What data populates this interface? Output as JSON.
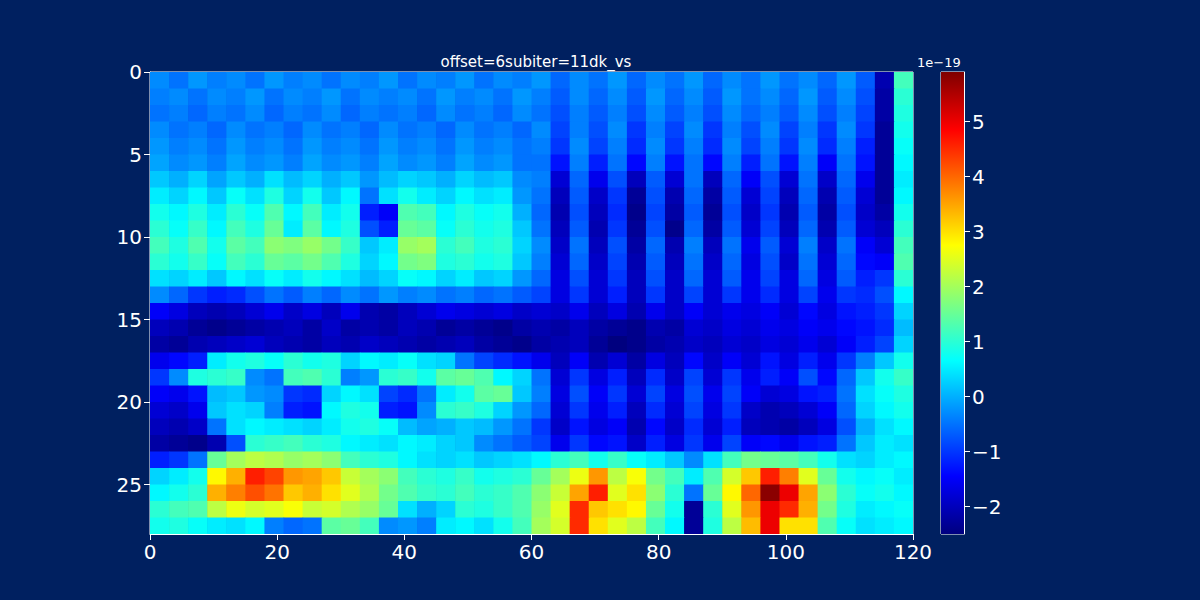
{
  "chart_data": {
    "type": "heatmap",
    "title": "offset=6subiter=11dk_vs",
    "xlim": [
      0,
      120
    ],
    "ylim": [
      28,
      0
    ],
    "xticks": [
      0,
      20,
      40,
      60,
      80,
      100,
      120
    ],
    "yticks": [
      0,
      5,
      10,
      15,
      20,
      25
    ],
    "x_edges": [
      0,
      3,
      6,
      9,
      12,
      15,
      18,
      21,
      24,
      27,
      30,
      33,
      36,
      39,
      42,
      45,
      48,
      51,
      54,
      57,
      60,
      63,
      66,
      69,
      72,
      75,
      78,
      81,
      84,
      87,
      90,
      93,
      96,
      99,
      102,
      105,
      108,
      111,
      114,
      117,
      120
    ],
    "y_edges": [
      0,
      1,
      2,
      3,
      4,
      5,
      6,
      7,
      8,
      9,
      10,
      11,
      12,
      13,
      14,
      15,
      16,
      17,
      18,
      19,
      20,
      21,
      22,
      23,
      24,
      25,
      26,
      27,
      28
    ],
    "color_range": [
      -2.5,
      5.9
    ],
    "color_ticks": [
      {
        "value": -2,
        "label": "−2"
      },
      {
        "value": -1,
        "label": "−1"
      },
      0,
      1,
      2,
      3,
      4,
      5
    ],
    "color_offset_text": "1e−19",
    "z": [
      [
        -0.3,
        -0.5,
        -0.2,
        -0.4,
        -0.3,
        -0.5,
        -0.2,
        -0.4,
        -0.3,
        -0.5,
        -0.3,
        -0.4,
        -0.2,
        -0.5,
        -0.3,
        -0.4,
        -0.2,
        -0.5,
        -0.3,
        -0.4,
        -0.2,
        -0.6,
        -0.3,
        -0.5,
        -0.2,
        -0.6,
        -0.3,
        -0.5,
        -0.2,
        -0.6,
        -0.3,
        -0.5,
        -0.2,
        -0.5,
        -0.3,
        -0.6,
        -0.2,
        -0.7,
        -2.1,
        1.2
      ],
      [
        -0.4,
        -0.3,
        -0.5,
        -0.3,
        -0.4,
        -0.2,
        -0.5,
        -0.3,
        -0.4,
        -0.2,
        -0.5,
        -0.3,
        -0.4,
        -0.3,
        -0.5,
        -0.2,
        -0.4,
        -0.3,
        -0.5,
        -0.2,
        -0.4,
        -0.7,
        -0.3,
        -0.6,
        -0.3,
        -0.7,
        -0.2,
        -0.6,
        -0.3,
        -0.7,
        -0.2,
        -0.5,
        -0.3,
        -0.6,
        -0.2,
        -0.7,
        -0.3,
        -0.8,
        -2.2,
        1.0
      ],
      [
        -0.5,
        -0.4,
        -0.6,
        -0.4,
        -0.5,
        -0.3,
        -0.6,
        -0.4,
        -0.5,
        -0.3,
        -0.6,
        -0.4,
        -0.5,
        -0.4,
        -0.6,
        -0.3,
        -0.5,
        -0.4,
        -0.6,
        -0.3,
        -0.5,
        -0.8,
        -0.4,
        -0.7,
        -0.4,
        -0.8,
        -0.3,
        -0.7,
        -0.4,
        -0.8,
        -0.3,
        -0.6,
        -0.4,
        -0.7,
        -0.3,
        -0.8,
        -0.4,
        -0.9,
        -2.2,
        0.9
      ],
      [
        -0.3,
        -0.5,
        -0.4,
        -0.6,
        -0.3,
        -0.5,
        -0.4,
        -0.6,
        -0.3,
        -0.5,
        -0.4,
        -0.6,
        -0.3,
        -0.5,
        -0.4,
        -0.6,
        -0.3,
        -0.5,
        -0.4,
        -0.6,
        -0.3,
        -0.9,
        -0.4,
        -0.8,
        -0.3,
        -1.0,
        -0.4,
        -0.9,
        -0.3,
        -1.0,
        -0.4,
        -0.8,
        -0.3,
        -0.9,
        -0.4,
        -1.0,
        -0.3,
        -1.0,
        -2.3,
        0.8
      ],
      [
        -0.2,
        -0.4,
        -0.3,
        -0.5,
        -0.2,
        -0.4,
        -0.3,
        -0.5,
        -0.2,
        -0.4,
        -0.3,
        -0.5,
        -0.2,
        -0.4,
        -0.3,
        -0.5,
        -0.2,
        -0.4,
        -0.3,
        -0.5,
        -0.4,
        -1.0,
        -0.3,
        -0.9,
        -0.4,
        -1.1,
        -0.3,
        -1.0,
        -0.4,
        -1.1,
        -0.3,
        -0.9,
        -0.4,
        -1.0,
        -0.3,
        -1.1,
        -0.4,
        -1.2,
        -2.3,
        0.7
      ],
      [
        -0.1,
        -0.3,
        -0.2,
        -0.4,
        -0.1,
        -0.3,
        -0.2,
        -0.4,
        -0.1,
        -0.3,
        -0.2,
        -0.4,
        -0.1,
        -0.3,
        -0.2,
        -0.4,
        -0.1,
        -0.3,
        -0.2,
        -0.5,
        -0.5,
        -1.3,
        -0.4,
        -1.2,
        -0.5,
        -1.4,
        -0.4,
        -1.3,
        -0.5,
        -1.4,
        -0.4,
        -1.2,
        -0.5,
        -1.3,
        -0.4,
        -1.5,
        -0.5,
        -1.3,
        -2.3,
        0.6
      ],
      [
        0.2,
        0.0,
        0.3,
        -0.1,
        0.2,
        0.0,
        0.4,
        0.1,
        0.3,
        0.0,
        0.2,
        -0.2,
        0.1,
        0.3,
        0.2,
        0.0,
        0.3,
        0.1,
        0.2,
        -0.3,
        -0.4,
        -1.8,
        -0.6,
        -1.6,
        -0.8,
        -2.0,
        -0.7,
        -1.8,
        -0.5,
        -2.0,
        -0.6,
        -1.5,
        -0.8,
        -1.8,
        -0.5,
        -1.9,
        -0.6,
        -1.6,
        -2.3,
        0.5
      ],
      [
        0.5,
        0.3,
        0.6,
        0.2,
        0.7,
        0.4,
        0.9,
        0.3,
        0.8,
        0.2,
        0.6,
        -0.5,
        0.4,
        0.8,
        0.5,
        0.3,
        0.6,
        0.4,
        0.5,
        -0.2,
        -0.5,
        -2.0,
        -0.7,
        -1.9,
        -1.0,
        -2.3,
        -0.8,
        -2.1,
        -0.6,
        -2.2,
        -0.7,
        -1.8,
        -0.9,
        -2.0,
        -0.6,
        -2.1,
        -0.7,
        -1.8,
        -2.3,
        0.6
      ],
      [
        0.8,
        0.6,
        0.9,
        0.5,
        1.0,
        0.7,
        1.3,
        0.6,
        1.2,
        0.5,
        0.8,
        -1.2,
        -1.5,
        1.3,
        1.2,
        0.6,
        0.9,
        0.7,
        0.8,
        0.0,
        -0.6,
        -2.1,
        -0.8,
        -2.0,
        -1.1,
        -2.4,
        -0.9,
        -2.2,
        -0.7,
        -2.3,
        -0.8,
        -1.9,
        -1.0,
        -2.1,
        -0.7,
        -2.2,
        -0.8,
        -1.9,
        -2.2,
        0.8
      ],
      [
        1.0,
        0.7,
        1.1,
        0.6,
        1.2,
        0.9,
        1.5,
        0.5,
        1.4,
        0.6,
        0.9,
        -0.8,
        -1.2,
        1.5,
        1.4,
        0.7,
        1.0,
        0.8,
        0.9,
        0.2,
        -0.5,
        -2.0,
        -0.7,
        -2.1,
        -1.0,
        -2.3,
        -0.8,
        -2.4,
        -0.6,
        -2.2,
        -0.7,
        -1.8,
        -0.9,
        -2.0,
        -0.6,
        -2.1,
        -0.7,
        -1.8,
        -2.0,
        1.0
      ],
      [
        1.2,
        0.9,
        1.3,
        0.8,
        1.4,
        1.2,
        1.8,
        1.7,
        1.9,
        1.6,
        1.1,
        0.2,
        0.5,
        1.9,
        2.0,
        1.0,
        1.2,
        0.9,
        1.0,
        0.3,
        -0.3,
        -1.9,
        -0.5,
        -2.0,
        -0.8,
        -2.2,
        -0.6,
        -2.1,
        -0.4,
        -2.0,
        -0.5,
        -1.6,
        -0.7,
        -1.8,
        -0.4,
        -1.9,
        -0.5,
        -1.5,
        -1.8,
        1.2
      ],
      [
        1.0,
        0.8,
        1.1,
        0.7,
        1.2,
        1.0,
        1.5,
        1.4,
        1.6,
        1.3,
        0.9,
        0.3,
        0.6,
        1.6,
        1.7,
        0.9,
        1.0,
        0.8,
        0.9,
        0.2,
        -0.4,
        -1.8,
        -0.6,
        -1.9,
        -0.9,
        -2.1,
        -0.7,
        -2.0,
        -0.5,
        -1.9,
        -0.6,
        -1.7,
        -0.8,
        -1.9,
        -0.5,
        -1.8,
        -0.6,
        -1.4,
        -1.5,
        1.3
      ],
      [
        0.4,
        0.3,
        0.5,
        0.2,
        0.6,
        0.4,
        0.7,
        0.5,
        0.8,
        0.6,
        0.4,
        0.1,
        0.3,
        0.7,
        0.6,
        0.3,
        0.5,
        0.2,
        0.3,
        -0.2,
        -0.6,
        -1.7,
        -0.8,
        -1.8,
        -1.0,
        -2.0,
        -0.8,
        -1.9,
        -0.6,
        -1.8,
        -0.7,
        -1.6,
        -0.9,
        -1.7,
        -0.6,
        -1.7,
        -0.7,
        -1.2,
        -1.0,
        1.0
      ],
      [
        -0.3,
        -0.6,
        -1.0,
        -1.2,
        -1.1,
        -0.8,
        -0.5,
        -0.7,
        -0.4,
        -0.6,
        -0.3,
        -0.5,
        -0.2,
        -0.4,
        -0.3,
        -0.5,
        -0.4,
        -0.6,
        -0.5,
        -0.7,
        -0.9,
        -1.7,
        -1.0,
        -1.8,
        -1.2,
        -2.0,
        -1.0,
        -1.9,
        -0.9,
        -1.8,
        -1.0,
        -1.6,
        -1.1,
        -1.7,
        -0.9,
        -1.6,
        -1.0,
        -1.1,
        -0.8,
        0.6
      ],
      [
        -1.5,
        -1.7,
        -2.0,
        -2.1,
        -2.0,
        -1.8,
        -1.6,
        -1.9,
        -1.7,
        -2.0,
        -1.6,
        -2.1,
        -2.2,
        -2.0,
        -1.8,
        -1.6,
        -1.7,
        -1.8,
        -1.7,
        -1.9,
        -1.8,
        -1.9,
        -1.6,
        -2.0,
        -1.7,
        -2.1,
        -1.6,
        -1.9,
        -1.5,
        -1.8,
        -1.6,
        -1.7,
        -1.5,
        -1.8,
        -1.4,
        -1.7,
        -1.3,
        -1.2,
        -1.0,
        0.3
      ],
      [
        -2.0,
        -2.1,
        -2.3,
        -2.4,
        -2.3,
        -2.2,
        -2.1,
        -2.0,
        -2.2,
        -1.9,
        -2.2,
        -2.1,
        -2.2,
        -2.0,
        -2.1,
        -2.3,
        -2.2,
        -2.3,
        -2.4,
        -2.2,
        -2.1,
        -2.2,
        -2.0,
        -2.2,
        -2.3,
        -2.4,
        -2.1,
        -2.2,
        -1.8,
        -1.9,
        -1.7,
        -1.8,
        -1.6,
        -1.7,
        -1.5,
        -1.6,
        -1.4,
        -1.3,
        -1.1,
        0.1
      ],
      [
        -2.2,
        -2.3,
        -2.1,
        -2.0,
        -1.9,
        -1.8,
        -2.0,
        -2.1,
        -2.2,
        -2.0,
        -2.1,
        -1.9,
        -2.0,
        -2.1,
        -2.2,
        -2.1,
        -2.0,
        -2.2,
        -2.3,
        -2.4,
        -2.2,
        -2.1,
        -2.0,
        -2.3,
        -2.5,
        -2.4,
        -2.2,
        -2.1,
        -1.9,
        -2.0,
        -1.8,
        -1.9,
        -1.7,
        -1.8,
        -1.6,
        -1.8,
        -1.5,
        -1.2,
        -0.9,
        0.3
      ],
      [
        -1.6,
        -1.4,
        -1.2,
        0.5,
        0.8,
        0.9,
        0.7,
        1.0,
        0.8,
        0.9,
        0.3,
        0.6,
        0.5,
        0.7,
        0.4,
        0.3,
        -0.5,
        -0.9,
        -1.1,
        -1.3,
        -1.6,
        -2.0,
        -1.5,
        -2.1,
        -1.8,
        -2.2,
        -1.7,
        -2.0,
        -1.4,
        -1.9,
        -1.5,
        -1.8,
        -1.3,
        -1.7,
        -1.2,
        -1.6,
        -1.0,
        -0.4,
        0.2,
        0.8
      ],
      [
        -1.0,
        -0.3,
        0.9,
        1.0,
        1.1,
        -0.3,
        -0.5,
        1.2,
        1.3,
        1.0,
        -0.4,
        -0.2,
        1.0,
        1.1,
        0.8,
        1.4,
        1.5,
        1.3,
        0.6,
        0.3,
        -0.5,
        -1.8,
        -1.0,
        -1.7,
        -1.2,
        -2.0,
        -1.1,
        -1.9,
        -0.9,
        -1.8,
        -1.0,
        -1.6,
        -1.2,
        -1.5,
        -0.8,
        -1.4,
        -0.6,
        0.2,
        0.8,
        1.1
      ],
      [
        -1.5,
        -1.6,
        -1.3,
        0.1,
        0.2,
        -0.2,
        -0.3,
        -1.0,
        -1.1,
        0.3,
        0.6,
        0.4,
        -0.9,
        -1.1,
        -0.5,
        0.5,
        0.8,
        1.4,
        1.5,
        0.2,
        -0.4,
        -1.7,
        -0.8,
        -1.5,
        -1.0,
        -1.8,
        -0.9,
        -1.7,
        -0.8,
        -1.6,
        -0.9,
        -1.5,
        -1.8,
        -1.7,
        -1.3,
        -1.2,
        -0.5,
        0.4,
        0.7,
        0.9
      ],
      [
        -1.8,
        -1.9,
        -1.6,
        0.2,
        0.4,
        0.3,
        -0.4,
        -1.2,
        -1.3,
        0.6,
        0.9,
        0.8,
        -1.2,
        -1.3,
        -0.3,
        1.0,
        1.1,
        0.9,
        0.3,
        -0.2,
        -0.6,
        -1.8,
        -1.0,
        -1.6,
        -1.2,
        -2.0,
        -1.1,
        -1.8,
        -0.9,
        -1.7,
        -1.0,
        -1.9,
        -2.1,
        -2.0,
        -1.8,
        -1.5,
        -0.6,
        0.3,
        0.6,
        0.8
      ],
      [
        -2.0,
        -2.1,
        -1.9,
        -0.5,
        0.4,
        0.6,
        0.5,
        0.4,
        0.3,
        0.5,
        0.8,
        0.9,
        0.7,
        0.1,
        -0.1,
        0.0,
        0.2,
        0.1,
        -0.2,
        -0.5,
        -1.0,
        -1.9,
        -1.3,
        -1.7,
        -1.5,
        -2.1,
        -1.4,
        -1.9,
        -1.1,
        -1.8,
        -1.2,
        -2.0,
        -2.1,
        -2.2,
        -2.0,
        -1.7,
        -0.8,
        0.0,
        0.4,
        0.6
      ],
      [
        -2.2,
        -2.3,
        -2.4,
        -2.1,
        -0.8,
        1.0,
        1.1,
        1.2,
        1.0,
        0.9,
        0.6,
        0.5,
        0.4,
        0.6,
        0.5,
        0.3,
        0.2,
        -0.3,
        -0.5,
        -0.7,
        -0.9,
        -1.6,
        -1.0,
        -1.4,
        -1.3,
        -1.9,
        -1.2,
        -1.7,
        -1.0,
        -1.6,
        -0.9,
        -1.5,
        -1.4,
        -1.6,
        -1.3,
        -1.2,
        -0.5,
        0.2,
        0.5,
        0.4
      ],
      [
        -1.2,
        -1.0,
        -0.5,
        1.5,
        2.0,
        2.2,
        2.1,
        1.9,
        2.0,
        1.8,
        1.2,
        1.0,
        0.9,
        0.6,
        0.4,
        0.3,
        0.4,
        0.2,
        0.3,
        0.4,
        0.6,
        1.0,
        1.2,
        0.8,
        1.1,
        0.7,
        0.5,
        0.2,
        -0.3,
        0.4,
        1.2,
        1.6,
        1.5,
        1.4,
        1.2,
        0.8,
        0.4,
        0.3,
        0.5,
        0.6
      ],
      [
        0.3,
        0.5,
        0.8,
        2.8,
        3.4,
        4.6,
        4.3,
        3.6,
        3.5,
        3.2,
        2.3,
        2.0,
        1.8,
        1.2,
        1.0,
        0.9,
        1.1,
        0.8,
        0.9,
        1.0,
        1.5,
        2.0,
        2.6,
        3.6,
        2.2,
        2.7,
        1.6,
        1.2,
        0.5,
        1.3,
        2.4,
        3.2,
        4.6,
        3.8,
        2.5,
        1.5,
        0.8,
        0.6,
        0.7,
        0.5
      ],
      [
        0.6,
        0.8,
        1.0,
        3.4,
        3.8,
        4.2,
        3.9,
        3.2,
        3.4,
        3.0,
        2.5,
        2.1,
        1.6,
        1.3,
        1.1,
        1.0,
        1.2,
        1.0,
        1.1,
        1.3,
        1.8,
        2.3,
        3.5,
        4.6,
        2.5,
        3.0,
        1.8,
        1.0,
        -0.5,
        1.5,
        2.8,
        4.0,
        5.8,
        5.0,
        3.5,
        1.8,
        1.0,
        0.7,
        0.8,
        0.6
      ],
      [
        1.0,
        1.2,
        1.3,
        2.2,
        2.6,
        2.4,
        2.5,
        2.7,
        2.3,
        2.4,
        2.1,
        1.9,
        1.5,
        0.4,
        0.0,
        0.3,
        1.0,
        0.9,
        1.1,
        1.3,
        1.9,
        2.5,
        4.5,
        3.2,
        3.0,
        2.8,
        1.5,
        0.8,
        -2.3,
        1.0,
        2.5,
        3.6,
        5.0,
        4.5,
        3.4,
        1.6,
        0.9,
        0.5,
        0.6,
        0.7
      ],
      [
        0.8,
        0.9,
        0.7,
        0.5,
        0.4,
        0.6,
        -0.4,
        -0.6,
        -0.5,
        1.4,
        1.5,
        1.2,
        -0.3,
        -0.2,
        -0.4,
        0.5,
        0.6,
        0.4,
        0.8,
        1.2,
        2.0,
        2.4,
        4.5,
        3.0,
        2.5,
        2.2,
        1.2,
        0.6,
        -2.3,
        0.9,
        2.2,
        3.3,
        5.0,
        3.0,
        3.0,
        1.3,
        0.7,
        0.4,
        0.5,
        0.6
      ]
    ]
  }
}
